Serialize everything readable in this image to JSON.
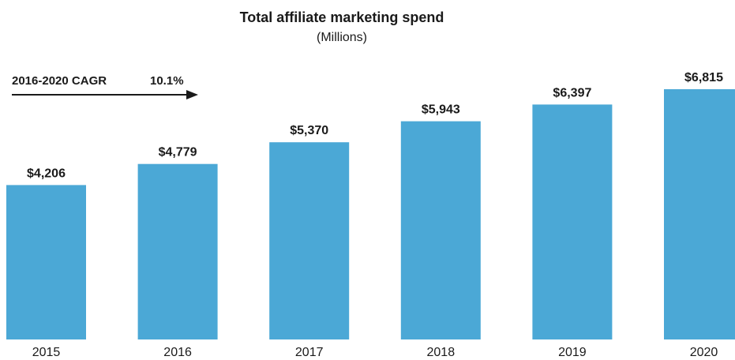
{
  "chart_data": {
    "type": "bar",
    "title": "Total affiliate marketing spend",
    "subtitle": "(Millions)",
    "categories": [
      "2015",
      "2016",
      "2017",
      "2018",
      "2019",
      "2020"
    ],
    "values": [
      4206,
      4779,
      5370,
      5943,
      6397,
      6815
    ],
    "value_labels": [
      "$4,206",
      "$4,779",
      "$5,370",
      "$5,943",
      "$6,397",
      "$6,815"
    ],
    "ylim": [
      0,
      7000
    ],
    "grid": false,
    "annotation": {
      "text": "2016-2020 CAGR",
      "value": "10.1%"
    },
    "colors": {
      "bar": "#4ba8d6",
      "text": "#1a1a1a",
      "arrow": "#1a1a1a"
    }
  }
}
